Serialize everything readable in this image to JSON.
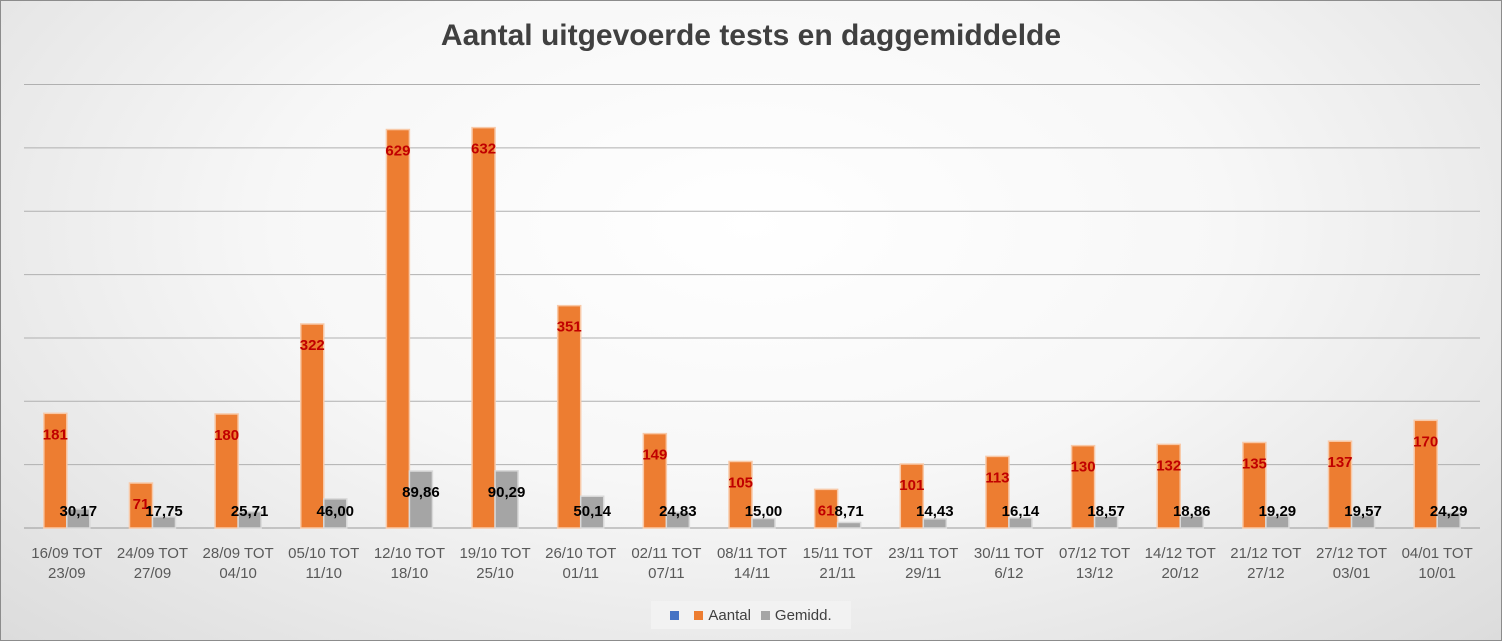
{
  "chart_data": {
    "type": "bar",
    "title": "Aantal uitgevoerde tests en daggemiddelde",
    "categories": [
      [
        "16/09 TOT",
        "23/09"
      ],
      [
        "24/09 TOT",
        "27/09"
      ],
      [
        "28/09 TOT",
        "04/10"
      ],
      [
        "05/10 TOT",
        "11/10"
      ],
      [
        "12/10 TOT",
        "18/10"
      ],
      [
        "19/10 TOT",
        "25/10"
      ],
      [
        "26/10 TOT",
        "01/11"
      ],
      [
        "02/11 TOT",
        "07/11"
      ],
      [
        "08/11 TOT",
        "14/11"
      ],
      [
        "15/11 TOT",
        "21/11"
      ],
      [
        "23/11 TOT",
        "29/11"
      ],
      [
        "30/11 TOT",
        "6/12"
      ],
      [
        "07/12 TOT",
        "13/12"
      ],
      [
        "14/12 TOT",
        "20/12"
      ],
      [
        "21/12 TOT",
        "27/12"
      ],
      [
        "27/12 TOT",
        "03/01"
      ],
      [
        "04/01 TOT",
        "10/01"
      ]
    ],
    "series": [
      {
        "name": "Aantal",
        "color": "#ed7d31",
        "values": [
          181,
          71,
          180,
          322,
          629,
          632,
          351,
          149,
          105,
          61,
          101,
          113,
          130,
          132,
          135,
          137,
          170
        ],
        "labels": [
          "181",
          "71",
          "180",
          "322",
          "629",
          "632",
          "351",
          "149",
          "105",
          "61",
          "101",
          "113",
          "130",
          "132",
          "135",
          "137",
          "170"
        ]
      },
      {
        "name": "Gemidd.",
        "color": "#a5a5a5",
        "values": [
          30.17,
          17.75,
          25.71,
          46.0,
          89.86,
          90.29,
          50.14,
          24.83,
          15.0,
          8.71,
          14.43,
          16.14,
          18.57,
          18.86,
          19.29,
          19.57,
          24.29
        ],
        "labels": [
          "30,17",
          "17,75",
          "25,71",
          "46,00",
          "89,86",
          "90,29",
          "50,14",
          "24,83",
          "15,00",
          "8,71",
          "14,43",
          "16,14",
          "18,57",
          "18,86",
          "19,29",
          "19,57",
          "24,29"
        ]
      }
    ],
    "legend_blank_series": {
      "name": "",
      "color": "#4472c4"
    },
    "ylim": [
      0,
      700
    ],
    "y_gridline_step": 100,
    "y_tick_labels_shown": false,
    "grid": true,
    "legend_position": "bottom",
    "label_colors": {
      "Aantal": "#c00000",
      "Gemidd.": "#000000"
    }
  }
}
